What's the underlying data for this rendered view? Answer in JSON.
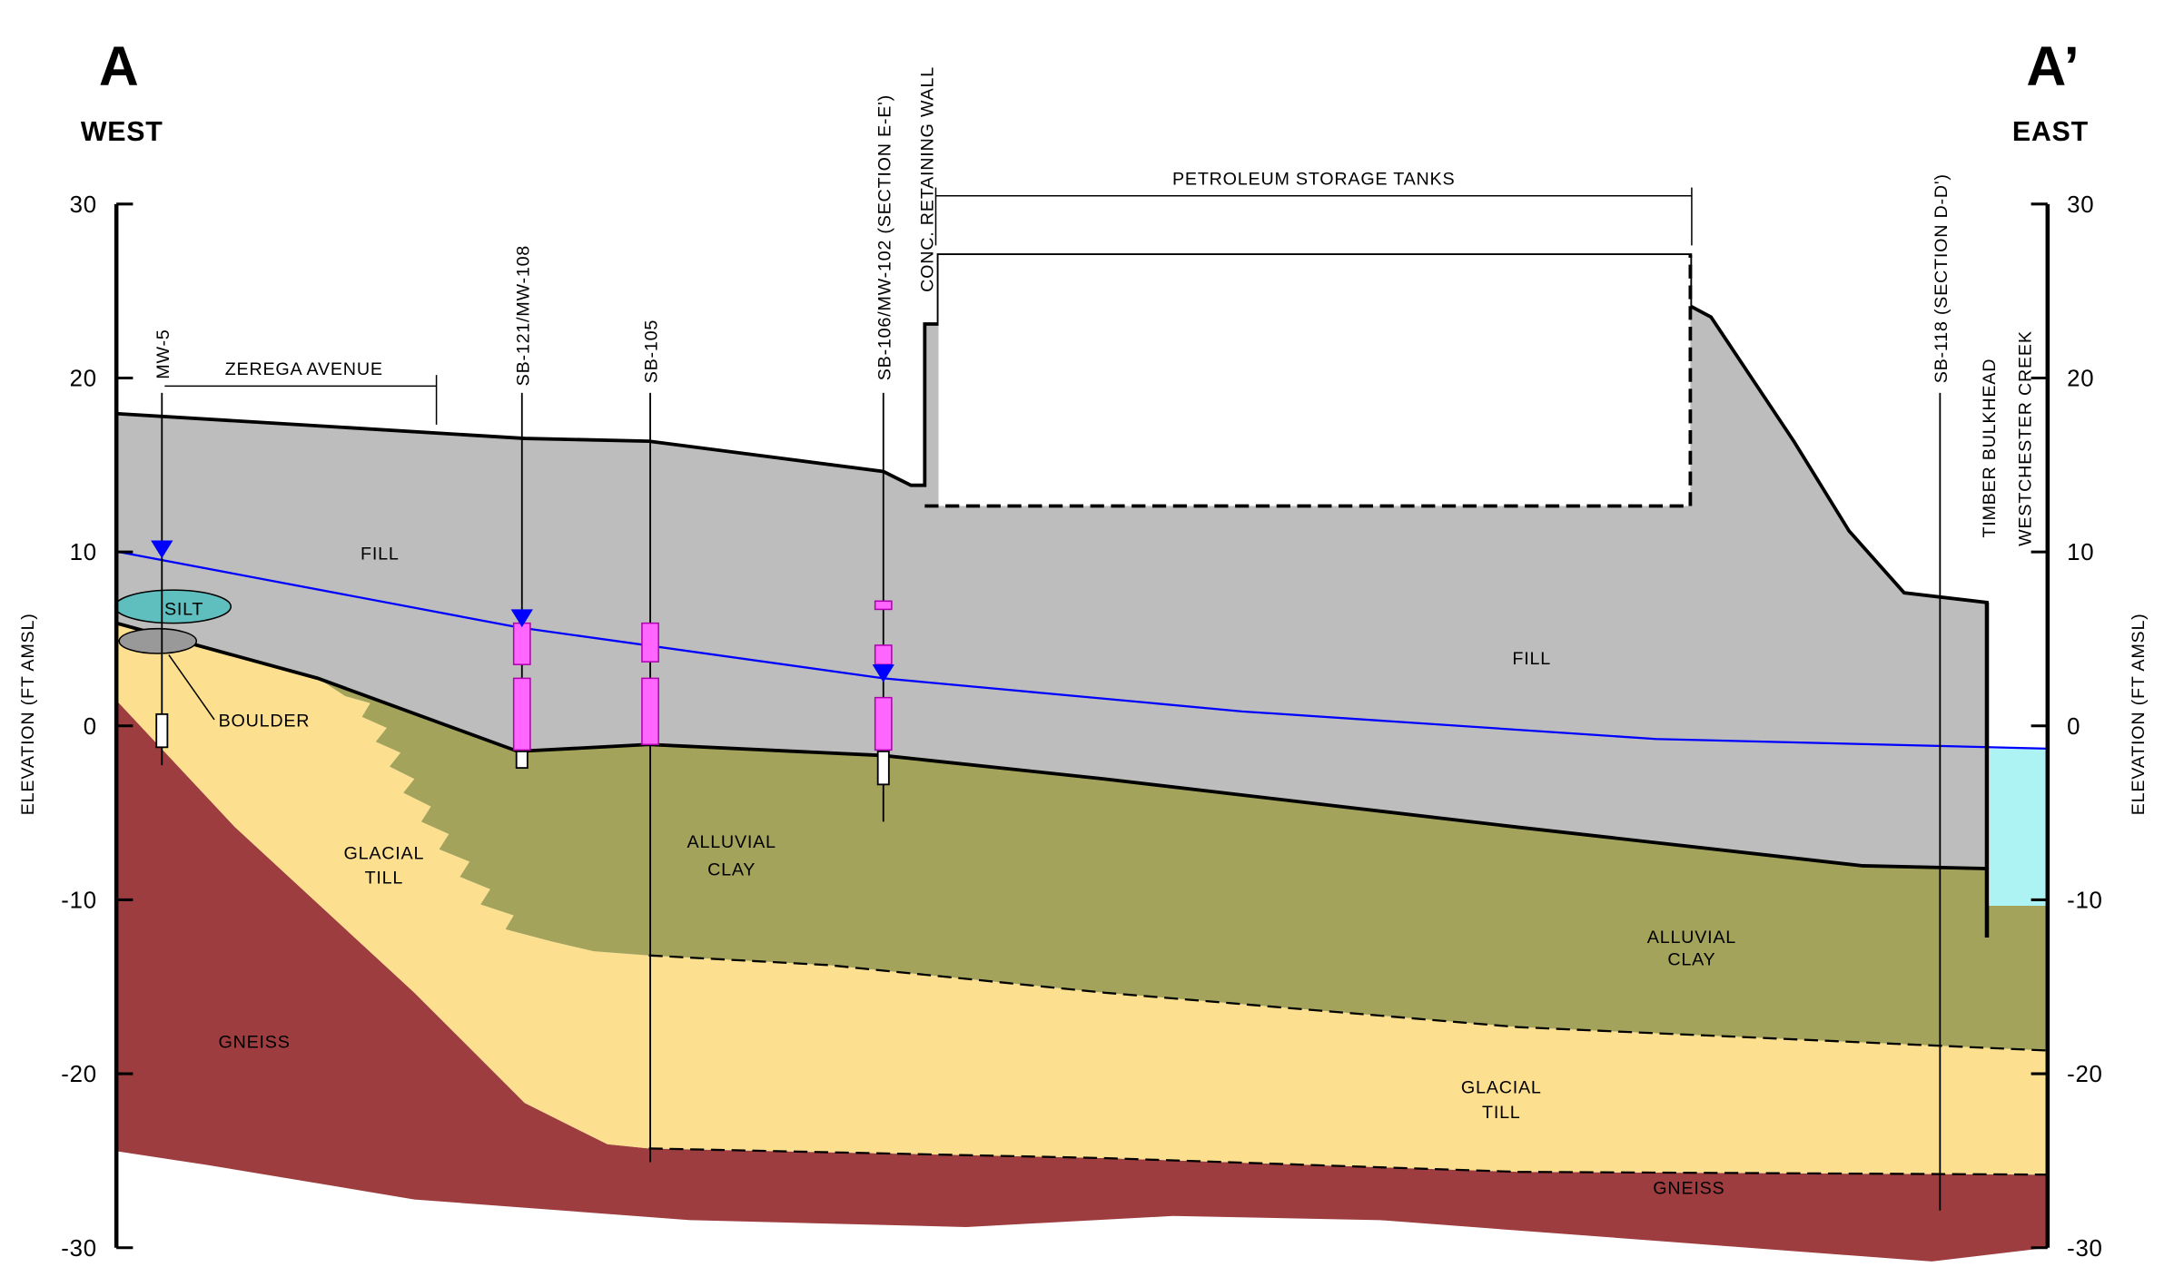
{
  "section": {
    "left_label": "A",
    "left_direction": "WEST",
    "right_label": "A’",
    "right_direction": "EAST"
  },
  "axis": {
    "title": "ELEVATION (FT AMSL)",
    "ylim": [
      -30,
      30
    ],
    "yticks": [
      -30,
      -20,
      -10,
      0,
      10,
      20,
      30
    ]
  },
  "features": {
    "street": "ZEREGA AVENUE",
    "tanks": "PETROLEUM STORAGE TANKS",
    "wall": "CONC. RETAINING WALL",
    "bulkhead": "TIMBER BULKHEAD",
    "creek": "WESTCHESTER CREEK"
  },
  "borings": [
    "MW-5",
    "SB-121/MW-108",
    "SB-105",
    "SB-106/MW-102 (SECTION E-E')",
    "SB-118 (SECTION D-D')"
  ],
  "layers": {
    "fill_west": "FILL",
    "fill_east": "FILL",
    "silt": "SILT",
    "boulder": "BOULDER",
    "till_west": [
      "GLACIAL",
      "TILL"
    ],
    "till_east": [
      "GLACIAL",
      "TILL"
    ],
    "clay_west": [
      "ALLUVIAL",
      "CLAY"
    ],
    "clay_east": [
      "ALLUVIAL",
      "CLAY"
    ],
    "gneiss_west": "GNEISS",
    "gneiss_east": "GNEISS"
  }
}
